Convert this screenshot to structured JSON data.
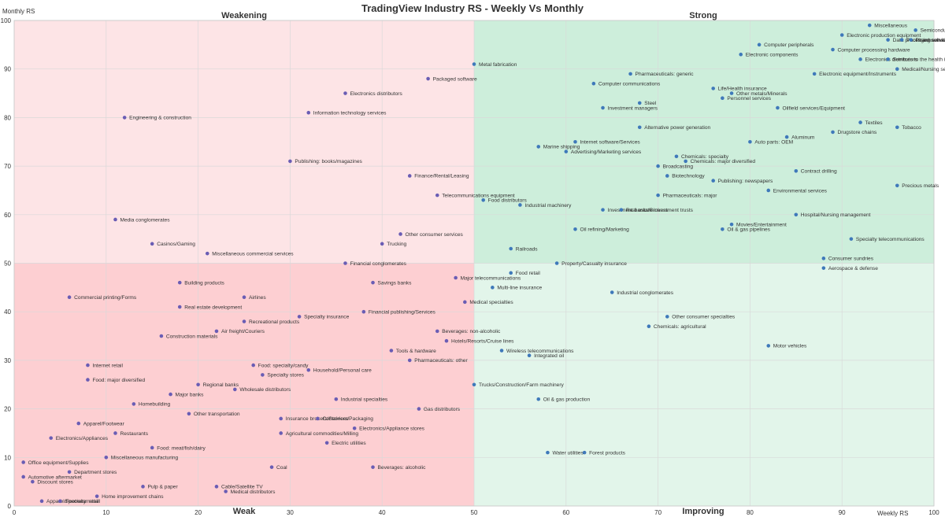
{
  "chart_data": {
    "type": "scatter",
    "title": "TradingView Industry RS - Weekly Vs Monthly",
    "xlabel": "Weekly RS",
    "ylabel": "Monthly RS",
    "xlim": [
      0,
      100
    ],
    "ylim": [
      0,
      100
    ],
    "x_ticks": [
      0,
      10,
      20,
      30,
      40,
      50,
      60,
      70,
      80,
      90,
      100
    ],
    "y_ticks": [
      0,
      10,
      20,
      30,
      40,
      50,
      60,
      70,
      80,
      90,
      100
    ],
    "grid": true,
    "divider": [
      50,
      50
    ],
    "quadrants": [
      {
        "name": "Weakening",
        "position": "top-left",
        "color": "#fde4e6"
      },
      {
        "name": "Strong",
        "position": "top-right",
        "color": "#cdeedb"
      },
      {
        "name": "Weak",
        "position": "bottom-left",
        "color": "#fdcfd2"
      },
      {
        "name": "Improving",
        "position": "bottom-right",
        "color": "#e2f5ea"
      }
    ],
    "point_colors": {
      "left": "#6a5db4",
      "right": "#3f79ba"
    },
    "points": [
      {
        "label": "Miscellaneous",
        "x": 93,
        "y": 99
      },
      {
        "label": "Semiconductors",
        "x": 98,
        "y": 98
      },
      {
        "label": "Electronic production equipment",
        "x": 90,
        "y": 97
      },
      {
        "label": "Data processing services",
        "x": 95,
        "y": 96
      },
      {
        "label": "Packaged software",
        "x": 96.5,
        "y": 96
      },
      {
        "label": "Pharmaceuticals: generic",
        "x": 97.5,
        "y": 96
      },
      {
        "label": "Computer peripherals",
        "x": 81,
        "y": 95
      },
      {
        "label": "Computer processing hardware",
        "x": 89,
        "y": 94
      },
      {
        "label": "Electronic components",
        "x": 79,
        "y": 93
      },
      {
        "label": "Electronics distributors",
        "x": 92,
        "y": 92
      },
      {
        "label": "Services to the health industry",
        "x": 95,
        "y": 92
      },
      {
        "label": "Medical/Nursing services",
        "x": 96,
        "y": 90
      },
      {
        "label": "Electronic equipment/Instruments",
        "x": 87,
        "y": 89
      },
      {
        "label": "Metal fabrication",
        "x": 50,
        "y": 91
      },
      {
        "label": "Packaged software",
        "x": 45,
        "y": 88
      },
      {
        "label": "Pharmaceuticals: generic",
        "x": 67,
        "y": 89
      },
      {
        "label": "Computer communications",
        "x": 63,
        "y": 87
      },
      {
        "label": "Life/Health insurance",
        "x": 76,
        "y": 86
      },
      {
        "label": "Other metals/Minerals",
        "x": 78,
        "y": 85
      },
      {
        "label": "Personnel services",
        "x": 77,
        "y": 84
      },
      {
        "label": "Steel",
        "x": 68,
        "y": 83
      },
      {
        "label": "Investment managers",
        "x": 64,
        "y": 82
      },
      {
        "label": "Oilfield services/Equipment",
        "x": 83,
        "y": 82
      },
      {
        "label": "Electronics distributors",
        "x": 36,
        "y": 85
      },
      {
        "label": "Information technology services",
        "x": 32,
        "y": 81
      },
      {
        "label": "Engineering & construction",
        "x": 12,
        "y": 80
      },
      {
        "label": "Alternative power generation",
        "x": 68,
        "y": 78
      },
      {
        "label": "Textiles",
        "x": 92,
        "y": 79
      },
      {
        "label": "Tobacco",
        "x": 96,
        "y": 78
      },
      {
        "label": "Drugstore chains",
        "x": 89,
        "y": 77
      },
      {
        "label": "Aluminum",
        "x": 84,
        "y": 76
      },
      {
        "label": "Auto parts: OEM",
        "x": 80,
        "y": 75
      },
      {
        "label": "Internet software/Services",
        "x": 61,
        "y": 75
      },
      {
        "label": "Marine shipping",
        "x": 57,
        "y": 74
      },
      {
        "label": "Advertising/Marketing services",
        "x": 60,
        "y": 73
      },
      {
        "label": "Chemicals: specialty",
        "x": 72,
        "y": 72
      },
      {
        "label": "Chemicals: major diversified",
        "x": 73,
        "y": 71
      },
      {
        "label": "Broadcasting",
        "x": 70,
        "y": 70
      },
      {
        "label": "Contract drilling",
        "x": 85,
        "y": 69
      },
      {
        "label": "Biotechnology",
        "x": 71,
        "y": 68
      },
      {
        "label": "Publishing: newspapers",
        "x": 76,
        "y": 67
      },
      {
        "label": "Precious metals",
        "x": 96,
        "y": 66
      },
      {
        "label": "Environmental services",
        "x": 82,
        "y": 65
      },
      {
        "label": "Pharmaceuticals: major",
        "x": 70,
        "y": 64
      },
      {
        "label": "Publishing: books/magazines",
        "x": 30,
        "y": 71
      },
      {
        "label": "Finance/Rental/Leasing",
        "x": 43,
        "y": 68
      },
      {
        "label": "Telecommunications equipment",
        "x": 46,
        "y": 64
      },
      {
        "label": "Food distributors",
        "x": 51,
        "y": 63
      },
      {
        "label": "Industrial machinery",
        "x": 55,
        "y": 62
      },
      {
        "label": "Investment banks/Brokers",
        "x": 64,
        "y": 61
      },
      {
        "label": "Real estate investment trusts",
        "x": 66,
        "y": 61
      },
      {
        "label": "Hospital/Nursing management",
        "x": 85,
        "y": 60
      },
      {
        "label": "Movies/Entertainment",
        "x": 78,
        "y": 58
      },
      {
        "label": "Oil & gas pipelines",
        "x": 77,
        "y": 57
      },
      {
        "label": "Oil refining/Marketing",
        "x": 61,
        "y": 57
      },
      {
        "label": "Specialty telecommunications",
        "x": 91,
        "y": 55
      },
      {
        "label": "Railroads",
        "x": 54,
        "y": 53
      },
      {
        "label": "Consumer sundries",
        "x": 88,
        "y": 51
      },
      {
        "label": "Property/Casualty insurance",
        "x": 59,
        "y": 50
      },
      {
        "label": "Aerospace & defense",
        "x": 88,
        "y": 49
      },
      {
        "label": "Media conglomerates",
        "x": 11,
        "y": 59
      },
      {
        "label": "Other consumer services",
        "x": 42,
        "y": 56
      },
      {
        "label": "Casinos/Gaming",
        "x": 15,
        "y": 54
      },
      {
        "label": "Trucking",
        "x": 40,
        "y": 54
      },
      {
        "label": "Miscellaneous commercial services",
        "x": 21,
        "y": 52
      },
      {
        "label": "Financial conglomerates",
        "x": 36,
        "y": 50
      },
      {
        "label": "Food retail",
        "x": 54,
        "y": 48
      },
      {
        "label": "Major telecommunications",
        "x": 48,
        "y": 47
      },
      {
        "label": "Multi-line insurance",
        "x": 52,
        "y": 45
      },
      {
        "label": "Industrial conglomerates",
        "x": 65,
        "y": 44
      },
      {
        "label": "Building products",
        "x": 18,
        "y": 46
      },
      {
        "label": "Savings banks",
        "x": 39,
        "y": 46
      },
      {
        "label": "Commercial printing/Forms",
        "x": 6,
        "y": 43
      },
      {
        "label": "Airlines",
        "x": 25,
        "y": 43
      },
      {
        "label": "Medical specialties",
        "x": 49,
        "y": 42
      },
      {
        "label": "Real estate development",
        "x": 18,
        "y": 41
      },
      {
        "label": "Financial publishing/Services",
        "x": 38,
        "y": 40
      },
      {
        "label": "Specialty insurance",
        "x": 31,
        "y": 39
      },
      {
        "label": "Recreational products",
        "x": 25,
        "y": 38
      },
      {
        "label": "Other consumer specialties",
        "x": 71,
        "y": 39
      },
      {
        "label": "Chemicals: agricultural",
        "x": 69,
        "y": 37
      },
      {
        "label": "Air freight/Couriers",
        "x": 22,
        "y": 36
      },
      {
        "label": "Beverages: non-alcoholic",
        "x": 46,
        "y": 36
      },
      {
        "label": "Construction materials",
        "x": 16,
        "y": 35
      },
      {
        "label": "Hotels/Resorts/Cruise lines",
        "x": 47,
        "y": 34
      },
      {
        "label": "Motor vehicles",
        "x": 82,
        "y": 33
      },
      {
        "label": "Tools & hardware",
        "x": 41,
        "y": 32
      },
      {
        "label": "Wireless telecommunications",
        "x": 53,
        "y": 32
      },
      {
        "label": "Integrated oil",
        "x": 56,
        "y": 31
      },
      {
        "label": "Pharmaceuticals: other",
        "x": 43,
        "y": 30
      },
      {
        "label": "Internet retail",
        "x": 8,
        "y": 29
      },
      {
        "label": "Food: specialty/candy",
        "x": 26,
        "y": 29
      },
      {
        "label": "Household/Personal care",
        "x": 32,
        "y": 28
      },
      {
        "label": "Specialty stores",
        "x": 27,
        "y": 27
      },
      {
        "label": "Food: major diversified",
        "x": 8,
        "y": 26
      },
      {
        "label": "Regional banks",
        "x": 20,
        "y": 25
      },
      {
        "label": "Wholesale distributors",
        "x": 24,
        "y": 24
      },
      {
        "label": "Trucks/Construction/Farm machinery",
        "x": 50,
        "y": 25
      },
      {
        "label": "Major banks",
        "x": 17,
        "y": 23
      },
      {
        "label": "Industrial specialties",
        "x": 35,
        "y": 22
      },
      {
        "label": "Oil & gas production",
        "x": 57,
        "y": 22
      },
      {
        "label": "Homebuilding",
        "x": 13,
        "y": 21
      },
      {
        "label": "Gas distributors",
        "x": 44,
        "y": 20
      },
      {
        "label": "Other transportation",
        "x": 19,
        "y": 19
      },
      {
        "label": "Insurance brokers/Services",
        "x": 29,
        "y": 18
      },
      {
        "label": "Containers/Packaging",
        "x": 33,
        "y": 18
      },
      {
        "label": "Apparel/Footwear",
        "x": 7,
        "y": 17
      },
      {
        "label": "Electronics/Appliance stores",
        "x": 37,
        "y": 16
      },
      {
        "label": "Restaurants",
        "x": 11,
        "y": 15
      },
      {
        "label": "Agricultural commodities/Milling",
        "x": 29,
        "y": 15
      },
      {
        "label": "Electronics/Appliances",
        "x": 4,
        "y": 14
      },
      {
        "label": "Electric utilities",
        "x": 34,
        "y": 13
      },
      {
        "label": "Food: meat/fish/dairy",
        "x": 15,
        "y": 12
      },
      {
        "label": "Water utilities",
        "x": 58,
        "y": 11
      },
      {
        "label": "Forest products",
        "x": 62,
        "y": 11
      },
      {
        "label": "Miscellaneous manufacturing",
        "x": 10,
        "y": 10
      },
      {
        "label": "Office equipment/Supplies",
        "x": 1,
        "y": 9
      },
      {
        "label": "Coal",
        "x": 28,
        "y": 8
      },
      {
        "label": "Beverages: alcoholic",
        "x": 39,
        "y": 8
      },
      {
        "label": "Department stores",
        "x": 6,
        "y": 7
      },
      {
        "label": "Automotive aftermarket",
        "x": 1,
        "y": 6
      },
      {
        "label": "Discount stores",
        "x": 2,
        "y": 5
      },
      {
        "label": "Pulp & paper",
        "x": 14,
        "y": 4
      },
      {
        "label": "Cable/Satellite TV",
        "x": 22,
        "y": 4
      },
      {
        "label": "Medical distributors",
        "x": 23,
        "y": 3
      },
      {
        "label": "Home improvement chains",
        "x": 9,
        "y": 2
      },
      {
        "label": "Apparel/Footwear retail",
        "x": 3,
        "y": 1
      },
      {
        "label": "Specialty retail",
        "x": 5,
        "y": 1
      }
    ]
  }
}
